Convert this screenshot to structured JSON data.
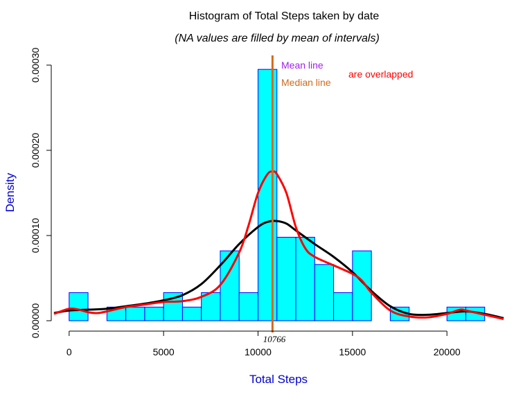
{
  "chart_data": {
    "type": "bar",
    "title": "Histogram of Total Steps taken by date",
    "subtitle": "(NA values are filled by mean of intervals)",
    "xlabel": "Total Steps",
    "ylabel": "Density",
    "xlim": [
      -800,
      23000
    ],
    "ylim": [
      0,
      0.0003
    ],
    "x_ticks": [
      0,
      5000,
      10000,
      15000,
      20000
    ],
    "x_tick_labels": [
      "0",
      "5000",
      "10000",
      "15000",
      "20000"
    ],
    "y_ticks": [
      0,
      0.0001,
      0.0002,
      0.0003
    ],
    "y_tick_labels": [
      "0.00000",
      "0.00010",
      "0.00020",
      "0.00030"
    ],
    "bin_width": 1000,
    "bin_starts": [
      0,
      1000,
      2000,
      3000,
      4000,
      5000,
      6000,
      7000,
      8000,
      9000,
      10000,
      11000,
      12000,
      13000,
      14000,
      15000,
      16000,
      17000,
      18000,
      19000,
      20000,
      21000
    ],
    "values": [
      3.3e-05,
      0,
      1.6e-05,
      1.6e-05,
      1.6e-05,
      3.3e-05,
      1.6e-05,
      3.3e-05,
      8.2e-05,
      3.3e-05,
      0.000295,
      9.8e-05,
      9.8e-05,
      6.6e-05,
      3.3e-05,
      8.2e-05,
      0,
      1.6e-05,
      0,
      0,
      1.6e-05,
      1.6e-05
    ],
    "bar_fill": "#00FFFF",
    "bar_stroke": "#0000FF",
    "series": [
      {
        "color": "#000000",
        "x": [
          -800,
          0,
          1000,
          2000,
          3000,
          4000,
          5000,
          6000,
          7000,
          8000,
          9000,
          10000,
          10500,
          11000,
          11500,
          12000,
          13000,
          14000,
          15000,
          16000,
          17000,
          18000,
          19000,
          20000,
          21000,
          22000,
          23000
        ],
        "y": [
          9e-06,
          1.2e-05,
          1.3e-05,
          1.4e-05,
          1.7e-05,
          2e-05,
          2.4e-05,
          3e-05,
          4.3e-05,
          6.5e-05,
          9e-05,
          0.00011,
          0.000116,
          0.000117,
          0.000114,
          0.000106,
          9e-05,
          7.5e-05,
          5.7e-05,
          3.5e-05,
          1.7e-05,
          8e-06,
          7e-06,
          9e-06,
          1.1e-05,
          8e-06,
          3e-06
        ]
      },
      {
        "color": "#FF0000",
        "x": [
          -800,
          0,
          500,
          1000,
          1500,
          2000,
          3000,
          4000,
          5000,
          6000,
          7000,
          8000,
          9000,
          9500,
          10000,
          10500,
          10800,
          11000,
          11500,
          12000,
          12500,
          13000,
          14000,
          15000,
          15500,
          16000,
          17000,
          18000,
          19000,
          20000,
          20700,
          21000,
          22000,
          23000
        ],
        "y": [
          8e-06,
          1.4e-05,
          1.3e-05,
          1e-05,
          9e-06,
          1.1e-05,
          1.6e-05,
          1.9e-05,
          2.2e-05,
          2.3e-05,
          2.8e-05,
          4.2e-05,
          8e-05,
          0.000112,
          0.00015,
          0.000172,
          0.000175,
          0.000172,
          0.00015,
          0.00011,
          8.5e-05,
          7.5e-05,
          6.5e-05,
          5.5e-05,
          4.7e-05,
          3.3e-05,
          1.2e-05,
          5e-06,
          4e-06,
          8e-06,
          1.3e-05,
          1.2e-05,
          7e-06,
          2e-06
        ]
      }
    ],
    "vlines": [
      {
        "x": 10766,
        "color": "#7A3FD0"
      },
      {
        "x": 10766,
        "color": "#D2691E"
      }
    ],
    "vline_label": "10766",
    "annotations": [
      {
        "text": "Mean line",
        "color": "#A020F0"
      },
      {
        "text": "Median line",
        "color": "#D2691E"
      },
      {
        "text": "are overlapped",
        "color": "#FF0000"
      }
    ],
    "title_color": "#000000",
    "axis_label_color": "#0000CD"
  }
}
